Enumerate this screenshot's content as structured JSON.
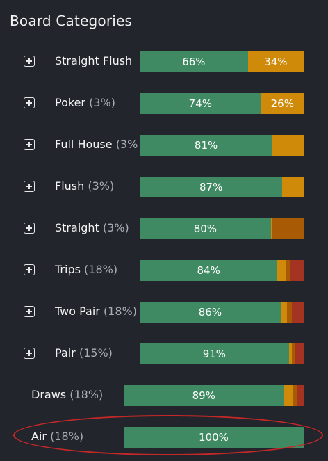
{
  "title": "Board Categories",
  "colors": {
    "background": "#22252c",
    "green": "#3f8a62",
    "orange": "#d08a0a",
    "dark_orange": "#b76f05",
    "brown": "#a85a05",
    "red": "#a53322",
    "highlight_ellipse": "#c62828"
  },
  "rows": [
    {
      "name": "Straight Flush",
      "pct": "",
      "expandable": true,
      "segments": [
        {
          "value": 66,
          "label": "66%",
          "color": "green"
        },
        {
          "value": 34,
          "label": "34%",
          "color": "orange"
        }
      ]
    },
    {
      "name": "Poker",
      "pct": "(3%)",
      "expandable": true,
      "segments": [
        {
          "value": 74,
          "label": "74%",
          "color": "green"
        },
        {
          "value": 26,
          "label": "26%",
          "color": "orange"
        }
      ]
    },
    {
      "name": "Full House",
      "pct": "(3%",
      "expandable": true,
      "segments": [
        {
          "value": 81,
          "label": "81%",
          "color": "green"
        },
        {
          "value": 19,
          "label": "",
          "color": "orange"
        }
      ]
    },
    {
      "name": "Flush",
      "pct": "(3%)",
      "expandable": true,
      "segments": [
        {
          "value": 87,
          "label": "87%",
          "color": "green"
        },
        {
          "value": 13,
          "label": "",
          "color": "orange"
        }
      ]
    },
    {
      "name": "Straight",
      "pct": "(3%)",
      "expandable": true,
      "segments": [
        {
          "value": 80,
          "label": "80%",
          "color": "green"
        },
        {
          "value": 1,
          "label": "",
          "color": "orange"
        },
        {
          "value": 19,
          "label": "",
          "color": "brown"
        }
      ]
    },
    {
      "name": "Trips",
      "pct": "(18%)",
      "expandable": true,
      "segments": [
        {
          "value": 84,
          "label": "84%",
          "color": "green"
        },
        {
          "value": 5,
          "label": "",
          "color": "orange"
        },
        {
          "value": 3,
          "label": "",
          "color": "brown"
        },
        {
          "value": 8,
          "label": "",
          "color": "red"
        }
      ]
    },
    {
      "name": "Two Pair",
      "pct": "(18%)",
      "expandable": true,
      "segments": [
        {
          "value": 86,
          "label": "86%",
          "color": "green"
        },
        {
          "value": 4,
          "label": "",
          "color": "orange"
        },
        {
          "value": 3,
          "label": "",
          "color": "brown"
        },
        {
          "value": 7,
          "label": "",
          "color": "red"
        }
      ]
    },
    {
      "name": "Pair",
      "pct": "(15%)",
      "expandable": true,
      "segments": [
        {
          "value": 91,
          "label": "91%",
          "color": "green"
        },
        {
          "value": 2,
          "label": "",
          "color": "orange"
        },
        {
          "value": 2,
          "label": "",
          "color": "brown"
        },
        {
          "value": 5,
          "label": "",
          "color": "red"
        }
      ]
    },
    {
      "name": "Draws",
      "pct": "(18%)",
      "expandable": false,
      "segments": [
        {
          "value": 89,
          "label": "89%",
          "color": "green"
        },
        {
          "value": 5,
          "label": "",
          "color": "orange"
        },
        {
          "value": 2,
          "label": "",
          "color": "brown"
        },
        {
          "value": 4,
          "label": "",
          "color": "red"
        }
      ]
    },
    {
      "name": "Air",
      "pct": "(18%)",
      "expandable": false,
      "highlighted": true,
      "segments": [
        {
          "value": 100,
          "label": "100%",
          "color": "green"
        }
      ]
    }
  ]
}
